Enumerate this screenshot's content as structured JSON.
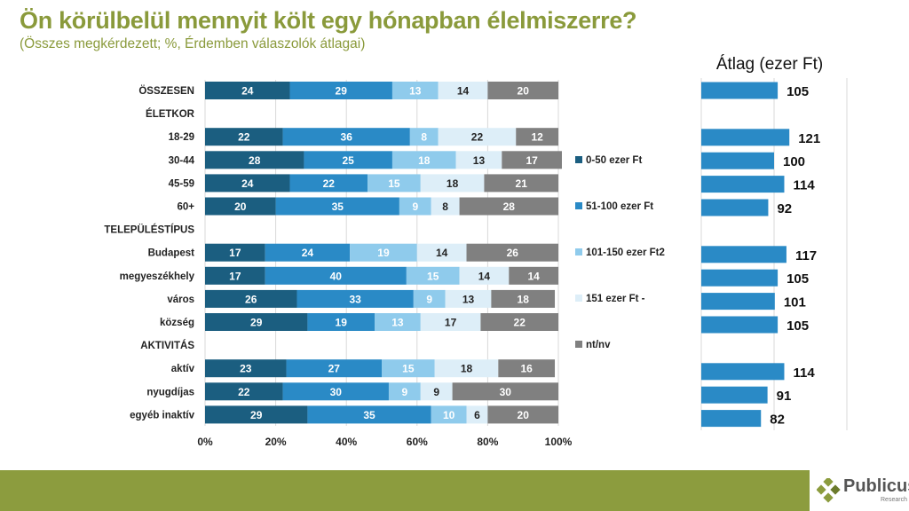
{
  "title": "Ön körülbelül mennyit költ egy hónapban élelmiszerre?",
  "subtitle": "(Összes megkérdezett; %, Érdemben válaszolók átlagai)",
  "chart_data": [
    {
      "type": "bar",
      "orientation": "horizontal-stacked-100",
      "categories": [
        "ÖSSZESEN",
        "ÉLETKOR",
        "18-29",
        "30-44",
        "45-59",
        "60+",
        "TELEPÜLÉSTÍPUS",
        "Budapest",
        "megyeszékhely",
        "város",
        "község",
        "AKTIVITÁS",
        "aktív",
        "nyugdíjas",
        "egyéb inaktív"
      ],
      "series": [
        {
          "name": "0-50 ezer Ft",
          "color": "#1b5e80",
          "values": [
            24,
            null,
            22,
            28,
            24,
            20,
            null,
            17,
            17,
            26,
            29,
            null,
            23,
            22,
            29
          ]
        },
        {
          "name": "51-100 ezer Ft",
          "color": "#2a8ac6",
          "values": [
            29,
            null,
            36,
            25,
            22,
            35,
            null,
            24,
            40,
            33,
            19,
            null,
            27,
            30,
            35
          ]
        },
        {
          "name": "101-150 ezer Ft2",
          "color": "#8fcbec",
          "values": [
            13,
            null,
            8,
            18,
            15,
            9,
            null,
            19,
            15,
            9,
            13,
            null,
            15,
            9,
            10
          ]
        },
        {
          "name": "151 ezer Ft -",
          "color": "#ddeef8",
          "values": [
            14,
            null,
            22,
            13,
            18,
            8,
            null,
            14,
            14,
            13,
            17,
            null,
            18,
            9,
            6
          ]
        },
        {
          "name": "nt/nv",
          "color": "#808080",
          "values": [
            20,
            null,
            12,
            17,
            21,
            28,
            null,
            26,
            14,
            18,
            22,
            null,
            16,
            30,
            20
          ]
        }
      ],
      "xticks": [
        "0%",
        "20%",
        "40%",
        "60%",
        "80%",
        "100%"
      ],
      "xlim": [
        0,
        100
      ],
      "legend": "right",
      "grid": true
    },
    {
      "type": "bar",
      "orientation": "horizontal",
      "title": "Átlag (ezer Ft)",
      "color": "#2a8ac6",
      "values": [
        105,
        null,
        121,
        100,
        114,
        92,
        null,
        117,
        105,
        101,
        105,
        null,
        114,
        91,
        82
      ],
      "xlim": [
        0,
        200
      ],
      "grid": true
    }
  ],
  "logo": {
    "text": "Publicus",
    "sub": "Research"
  }
}
